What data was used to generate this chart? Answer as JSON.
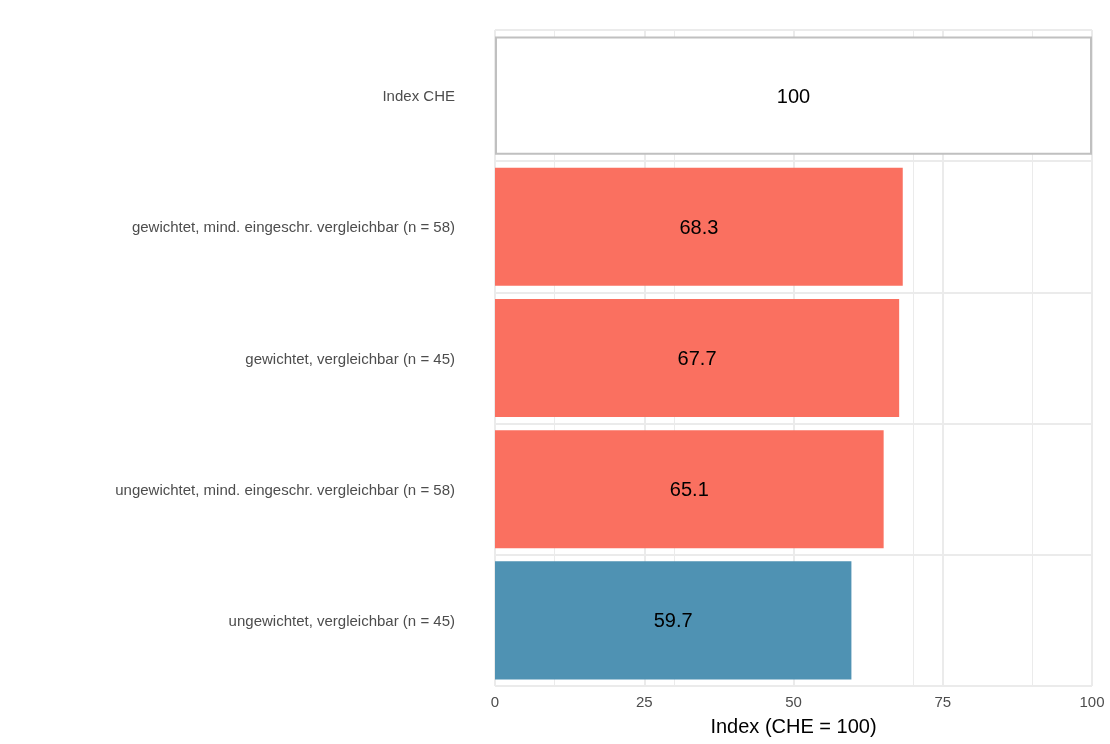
{
  "chart_data": {
    "type": "bar",
    "orientation": "horizontal",
    "xlabel": "Index (CHE = 100)",
    "categories": [
      "Index CHE",
      "gewichtet, mind. eingeschr. vergleichbar (n = 58)",
      "gewichtet, vergleichbar (n = 45)",
      "ungewichtet, mind. eingeschr. vergleichbar (n = 58)",
      "ungewichtet, vergleichbar (n = 45)"
    ],
    "values": [
      100,
      68.3,
      67.7,
      65.1,
      59.7
    ],
    "colors": [
      "#ffffff",
      "#fa7060",
      "#fa7060",
      "#fa7060",
      "#4f92b3"
    ],
    "xlim": [
      0,
      100
    ],
    "xticks": [
      0,
      25,
      50,
      75,
      100
    ],
    "grid": true,
    "data_labels": true
  }
}
